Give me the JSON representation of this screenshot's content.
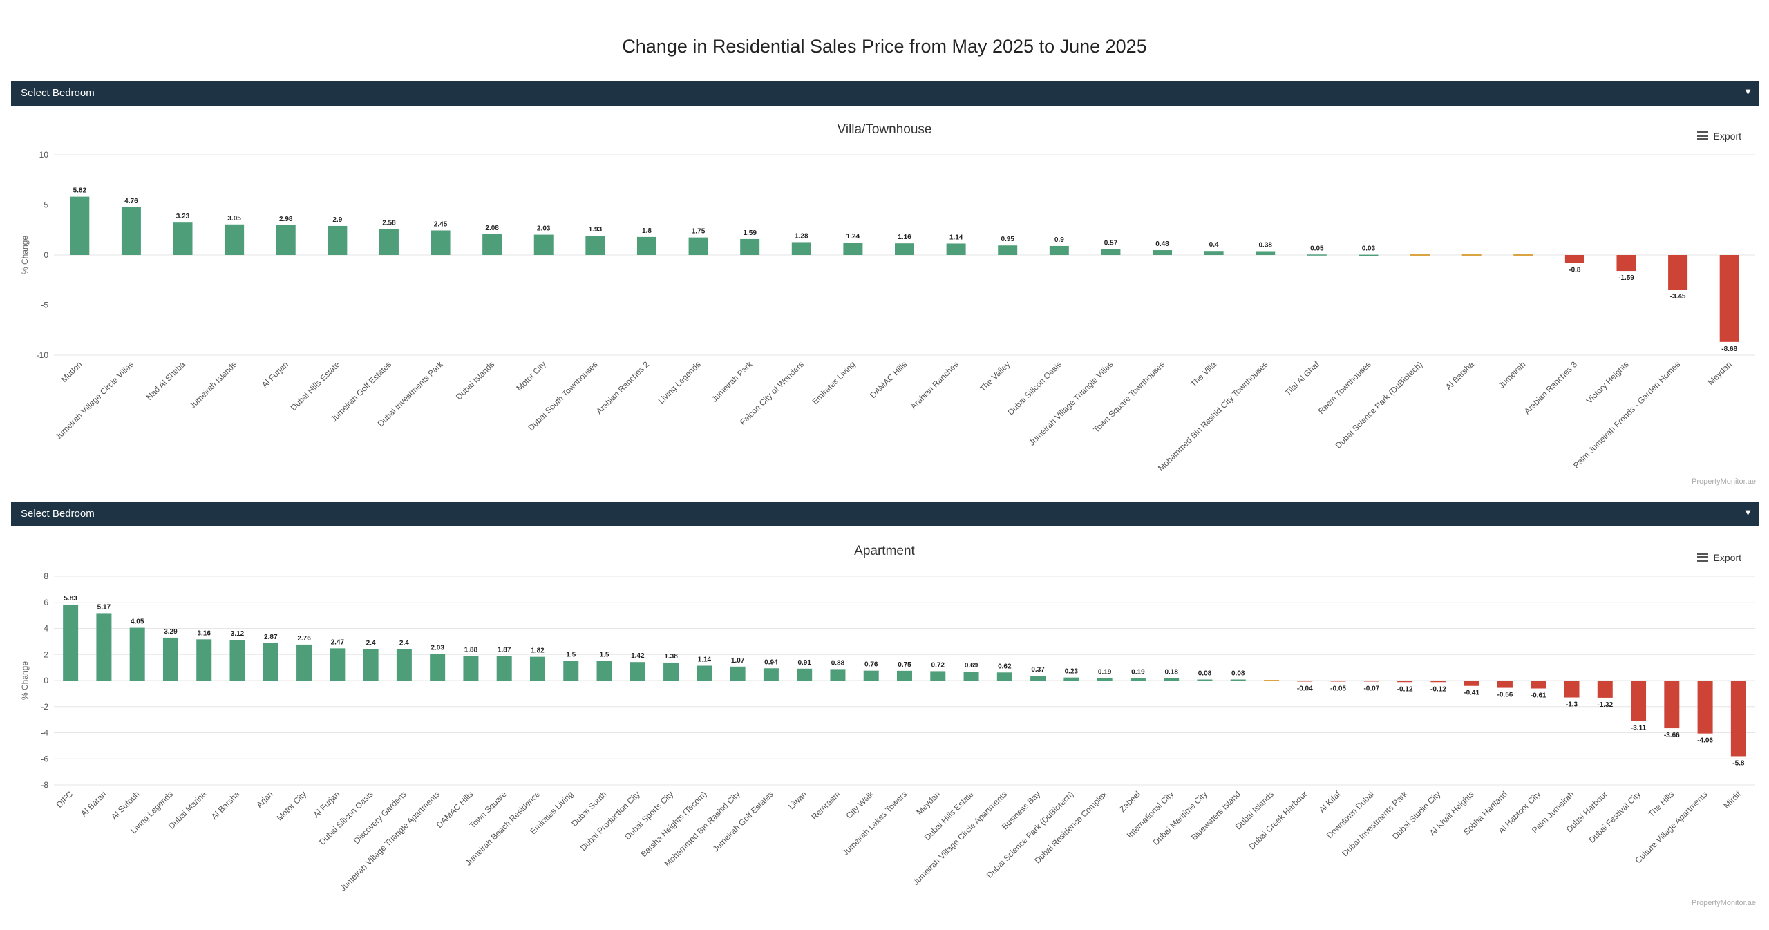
{
  "page": {
    "title": "Change in Residential Sales Price from May 2025 to June 2025"
  },
  "controls": {
    "select_label": "Select Bedroom",
    "export_label": "Export"
  },
  "icons": {
    "dropdown": "caret-down-icon",
    "export": "hamburger-menu-icon"
  },
  "colors": {
    "positive": "#4f9e7a",
    "neutral": "#d9a441",
    "negative": "#cd4437",
    "header_bar": "#1e3343"
  },
  "credit": "PropertyMonitor.ae",
  "chart_data": [
    {
      "type": "bar",
      "title": "Villa/Townhouse",
      "ylabel": "% Change",
      "ylim": [
        -10,
        10
      ],
      "yticks": [
        10,
        5,
        0,
        -5,
        -10
      ],
      "grid": true,
      "categories": [
        "Mudon",
        "Jumeirah Village Circle Villas",
        "Nad Al Sheba",
        "Jumeirah Islands",
        "Al Furjan",
        "Dubai Hills Estate",
        "Jumeirah Golf Estates",
        "Dubai Investments Park",
        "Dubai Islands",
        "Motor City",
        "Dubai South Townhouses",
        "Arabian Ranches 2",
        "Living Legends",
        "Jumeirah Park",
        "Falcon City of Wonders",
        "Emirates Living",
        "DAMAC Hills",
        "Arabian Ranches",
        "The Valley",
        "Dubai Silicon Oasis",
        "Jumeirah Village Triangle Villas",
        "Town Square Townhouses",
        "The Villa",
        "Mohammed Bin Rashid City Townhouses",
        "Tilal Al Ghaf",
        "Reem Townhouses",
        "Dubai Science Park (DuBiotech)",
        "Al Barsha",
        "Jumeirah",
        "Arabian Ranches 3",
        "Victory Heights",
        "Palm Jumeirah Fronds - Garden Homes",
        "Meydan"
      ],
      "values": [
        5.82,
        4.76,
        3.23,
        3.05,
        2.98,
        2.9,
        2.58,
        2.45,
        2.08,
        2.03,
        1.93,
        1.8,
        1.75,
        1.59,
        1.28,
        1.24,
        1.16,
        1.14,
        0.95,
        0.9,
        0.57,
        0.48,
        0.4,
        0.38,
        0.05,
        0.03,
        0,
        0,
        0,
        -0.8,
        -1.59,
        -3.45,
        -8.68
      ],
      "value_labels": [
        "5.82",
        "4.76",
        "3.23",
        "3.05",
        "2.98",
        "2.9",
        "2.58",
        "2.45",
        "2.08",
        "2.03",
        "1.93",
        "1.8",
        "1.75",
        "1.59",
        "1.28",
        "1.24",
        "1.16",
        "1.14",
        "0.95",
        "0.9",
        "0.57",
        "0.48",
        "0.4",
        "0.38",
        "0.05",
        "0.03",
        "",
        "",
        "",
        "-0.8",
        "-1.59",
        "-3.45",
        "-8.68"
      ]
    },
    {
      "type": "bar",
      "title": "Apartment",
      "ylabel": "% Change",
      "ylim": [
        -8,
        8
      ],
      "yticks": [
        8,
        6,
        4,
        2,
        0,
        -2,
        -4,
        -6,
        -8
      ],
      "grid": true,
      "categories": [
        "DIFC",
        "Al Barari",
        "Al Sufouh",
        "Living Legends",
        "Dubai Marina",
        "Al Barsha",
        "Arjan",
        "Motor City",
        "Al Furjan",
        "Dubai Silicon Oasis",
        "Discovery Gardens",
        "Jumeirah Village Triangle Apartments",
        "DAMAC Hills",
        "Town Square",
        "Jumeirah Beach Residence",
        "Emirates Living",
        "Dubai South",
        "Dubai Production City",
        "Dubai Sports City",
        "Barsha Heights (Tecom)",
        "Mohammed Bin Rashid City",
        "Jumeirah Golf Estates",
        "Liwan",
        "Remraam",
        "City Walk",
        "Jumeirah Lakes Towers",
        "Meydan",
        "Dubai Hills Estate",
        "Jumeirah Village Circle Apartments",
        "Business Bay",
        "Dubai Science Park (DuBiotech)",
        "Dubai Residence Complex",
        "Zabeel",
        "International City",
        "Dubai Maritime City",
        "Bluewaters Island",
        "Dubai Islands",
        "Dubai Creek Harbour",
        "Al Kifaf",
        "Downtown Dubai",
        "Dubai Investments Park",
        "Dubai Studio City",
        "Al Khail Heights",
        "Sobha Hartland",
        "Al Habtoor City",
        "Palm Jumeirah",
        "Dubai Harbour",
        "Dubai Festival City",
        "The Hills",
        "Culture Village Apartments",
        "Mirdif"
      ],
      "values": [
        5.83,
        5.17,
        4.05,
        3.29,
        3.16,
        3.12,
        2.87,
        2.76,
        2.47,
        2.4,
        2.4,
        2.03,
        1.88,
        1.87,
        1.82,
        1.5,
        1.5,
        1.42,
        1.38,
        1.14,
        1.07,
        0.94,
        0.91,
        0.88,
        0.76,
        0.75,
        0.72,
        0.69,
        0.62,
        0.37,
        0.23,
        0.19,
        0.19,
        0.18,
        0.08,
        0.08,
        0,
        -0.04,
        -0.05,
        -0.07,
        -0.12,
        -0.12,
        -0.41,
        -0.56,
        -0.61,
        -1.3,
        -1.32,
        -3.11,
        -3.66,
        -4.06,
        -5.8
      ],
      "value_labels": [
        "5.83",
        "5.17",
        "4.05",
        "3.29",
        "3.16",
        "3.12",
        "2.87",
        "2.76",
        "2.47",
        "2.4",
        "2.4",
        "2.03",
        "1.88",
        "1.87",
        "1.82",
        "1.5",
        "1.5",
        "1.42",
        "1.38",
        "1.14",
        "1.07",
        "0.94",
        "0.91",
        "0.88",
        "0.76",
        "0.75",
        "0.72",
        "0.69",
        "0.62",
        "0.37",
        "0.23",
        "0.19",
        "0.19",
        "0.18",
        "0.08",
        "0.08",
        "",
        "-0.04",
        "-0.05",
        "-0.07",
        "-0.12",
        "-0.12",
        "-0.41",
        "-0.56",
        "-0.61",
        "-1.3",
        "-1.32",
        "-3.11",
        "-3.66",
        "-4.06",
        "-5.8"
      ]
    }
  ]
}
